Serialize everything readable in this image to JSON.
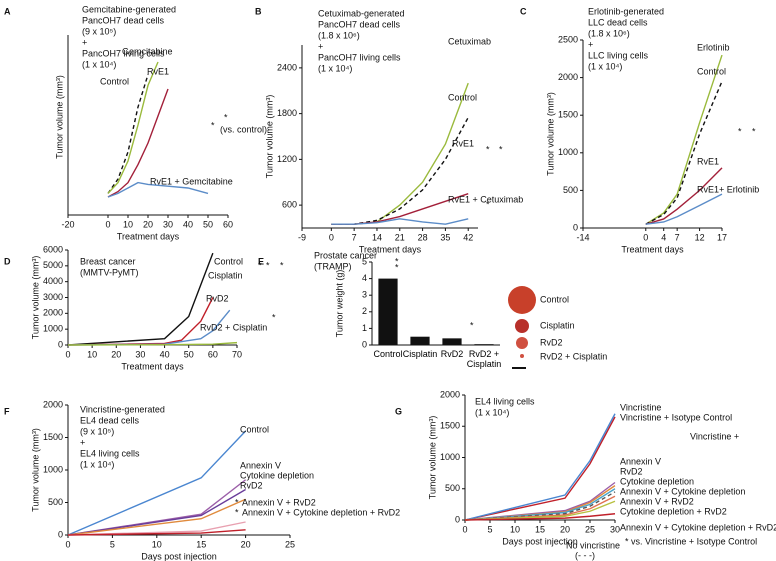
{
  "chart_data": [
    {
      "type": "line",
      "label": "A",
      "title": [
        "Gemcitabine-generated",
        "PancOH7 dead cells",
        "(9 x 10⁵)",
        "+",
        "PancOH7 living cells",
        "(1 x 10⁴)"
      ],
      "xlabel": "Treatment days",
      "ylabel": "Tumor volume (mm³)",
      "xlim": [
        -20,
        60
      ],
      "xticks": [
        -20,
        0,
        10,
        20,
        30,
        40,
        50,
        60
      ],
      "ylim": [
        0,
        100
      ],
      "series": [
        {
          "name": "Control",
          "color": "#111111",
          "dash": true,
          "x": [
            0,
            5,
            10,
            15,
            20
          ],
          "values": [
            12,
            20,
            35,
            60,
            78
          ]
        },
        {
          "name": "Gemcitabine",
          "color": "#9aba3c",
          "x": [
            0,
            5,
            10,
            15,
            20,
            25
          ],
          "values": [
            12,
            18,
            30,
            50,
            72,
            85
          ]
        },
        {
          "name": "RvE1",
          "color": "#a3203a",
          "x": [
            0,
            5,
            10,
            15,
            20,
            25,
            30
          ],
          "values": [
            10,
            13,
            18,
            28,
            40,
            55,
            70
          ]
        },
        {
          "name": "RvE1 + Gemcitabine",
          "color": "#5b8cc8",
          "x": [
            0,
            5,
            10,
            15,
            20,
            30,
            40,
            50
          ],
          "values": [
            10,
            12,
            15,
            18,
            17,
            16,
            15,
            12
          ]
        }
      ],
      "annotations": [
        {
          "text": "*",
          "color": "#c0306a"
        },
        {
          "text": "*",
          "color": "#111111"
        },
        {
          "text": "(vs. control)",
          "color": "#111111"
        }
      ]
    },
    {
      "type": "line",
      "label": "B",
      "title": [
        "Cetuximab-generated",
        "PancOH7 dead cells",
        "(1.8 x 10⁶)",
        "+",
        "PancOH7 living cells",
        "(1 x 10⁴)"
      ],
      "xlabel": "Treatment days",
      "ylabel": "Tumor volume (mm³)",
      "xlim": [
        -9,
        45
      ],
      "xticks": [
        -9,
        0,
        7,
        14,
        21,
        28,
        35,
        42
      ],
      "ylim": [
        300,
        2700
      ],
      "yticks": [
        600,
        1200,
        1800,
        2400
      ],
      "series": [
        {
          "name": "Cetuximab",
          "color": "#9aba3c",
          "x": [
            0,
            7,
            14,
            21,
            28,
            35,
            42
          ],
          "values": [
            350,
            350,
            380,
            600,
            900,
            1400,
            2200
          ]
        },
        {
          "name": "Control",
          "color": "#111111",
          "dash": true,
          "x": [
            0,
            7,
            14,
            21,
            28,
            35,
            42
          ],
          "values": [
            350,
            350,
            400,
            550,
            800,
            1200,
            1750
          ]
        },
        {
          "name": "RvE1",
          "color": "#a3203a",
          "x": [
            0,
            7,
            14,
            21,
            28,
            35,
            42
          ],
          "values": [
            350,
            350,
            380,
            450,
            550,
            650,
            750
          ]
        },
        {
          "name": "RvE1 + Cetuximab",
          "color": "#5b8cc8",
          "x": [
            0,
            7,
            14,
            21,
            28,
            35,
            42
          ],
          "values": [
            350,
            350,
            370,
            420,
            380,
            350,
            420
          ]
        }
      ],
      "annotations": [
        {
          "text": "*",
          "color": "#c0306a"
        },
        {
          "text": "*",
          "color": "#5b8cc8"
        },
        {
          "text": "*",
          "color": "#5b8cc8"
        }
      ]
    },
    {
      "type": "line",
      "label": "C",
      "title": [
        "Erlotinib-generated",
        "LLC dead cells",
        "(1.8 x 10⁶)",
        "+",
        "LLC living cells",
        "(1 x 10⁴)"
      ],
      "xlabel": "Treatment days",
      "ylabel": "Tumor volume (mm³)",
      "xlim": [
        -14,
        17
      ],
      "xticks": [
        -14,
        0,
        4,
        7,
        12,
        17
      ],
      "ylim": [
        0,
        2500
      ],
      "yticks": [
        0,
        500,
        1000,
        1500,
        2000,
        2500
      ],
      "series": [
        {
          "name": "Erlotinib",
          "color": "#9aba3c",
          "x": [
            0,
            4,
            7,
            12,
            17
          ],
          "values": [
            50,
            200,
            450,
            1400,
            2300
          ]
        },
        {
          "name": "Control",
          "color": "#111111",
          "dash": true,
          "x": [
            0,
            4,
            7,
            12,
            17
          ],
          "values": [
            50,
            180,
            400,
            1250,
            1950
          ]
        },
        {
          "name": "RvE1",
          "color": "#a3203a",
          "x": [
            0,
            4,
            7,
            12,
            17
          ],
          "values": [
            50,
            120,
            250,
            500,
            800
          ]
        },
        {
          "name": "RvE1+ Erlotinib",
          "color": "#5b8cc8",
          "x": [
            0,
            4,
            7,
            12,
            17
          ],
          "values": [
            50,
            80,
            150,
            300,
            450
          ]
        }
      ],
      "annotations": [
        {
          "text": "*",
          "color": "#c0306a"
        },
        {
          "text": "*",
          "color": "#9aba3c"
        }
      ]
    },
    {
      "type": "line",
      "label": "D",
      "title": [
        "Breast cancer",
        "(MMTV-PyMT)"
      ],
      "xlabel": "Treatment days",
      "ylabel": "Tumor volume (mm³)",
      "xlim": [
        0,
        70
      ],
      "xticks": [
        0,
        10,
        20,
        30,
        40,
        50,
        60,
        70
      ],
      "ylim": [
        0,
        6000
      ],
      "yticks": [
        0,
        1000,
        2000,
        3000,
        4000,
        5000,
        6000
      ],
      "series": [
        {
          "name": "Control",
          "color": "#111111",
          "x": [
            0,
            40,
            50,
            60
          ],
          "values": [
            0,
            400,
            1800,
            5800
          ]
        },
        {
          "name": "Cisplatin",
          "color": "#c0202a",
          "x": [
            0,
            40,
            47,
            55,
            60
          ],
          "values": [
            0,
            100,
            300,
            1500,
            3000
          ]
        },
        {
          "name": "RvD2",
          "color": "#5b8cc8",
          "x": [
            0,
            40,
            55,
            60,
            67
          ],
          "values": [
            0,
            50,
            400,
            900,
            2200
          ]
        },
        {
          "name": "RvD2 + Cisplatin",
          "color": "#9aba3c",
          "x": [
            0,
            40,
            60,
            70
          ],
          "values": [
            0,
            20,
            50,
            150
          ]
        }
      ],
      "annotations": [
        {
          "text": "*",
          "color": "#c0306a"
        },
        {
          "text": "*",
          "color": "#5b8cc8"
        },
        {
          "text": "*",
          "color": "#9aba3c"
        },
        {
          "text": "*",
          "color": "#9aba3c"
        }
      ]
    },
    {
      "type": "bar",
      "label": "E",
      "title": [
        "Prostate cancer",
        "(TRAMP)"
      ],
      "ylabel": "Tumor weight (g)",
      "categories": [
        "Control",
        "Cisplatin",
        "RvD2",
        "RvD2 + Cisplatin"
      ],
      "values": [
        4.0,
        0.5,
        0.4,
        0.05
      ],
      "color": "#111111",
      "ylim": [
        0,
        5
      ],
      "yticks": [
        0,
        1,
        2,
        3,
        4,
        5
      ],
      "annotations": [
        {
          "text": "*",
          "color": "#111111"
        },
        {
          "text": "*",
          "color": "#111111"
        },
        {
          "text": "*",
          "color": "#111111"
        }
      ]
    },
    {
      "type": "line",
      "label": "F",
      "title": [
        "Vincristine-generated",
        "EL4 dead cells",
        "(9 x 10⁵)",
        "+",
        "EL4 living cells",
        "(1 x 10⁴)"
      ],
      "xlabel": "Days post injection",
      "ylabel": "Tumor volume (mm³)",
      "xlim": [
        0,
        25
      ],
      "xticks": [
        0,
        5,
        10,
        15,
        20,
        25
      ],
      "ylim": [
        0,
        2000
      ],
      "yticks": [
        0,
        500,
        1000,
        1500,
        2000
      ],
      "series": [
        {
          "name": "Control",
          "color": "#4a86d0",
          "x": [
            0,
            15,
            20
          ],
          "values": [
            0,
            880,
            1600
          ]
        },
        {
          "name": "Annexin V",
          "color": "#9b5ea8",
          "x": [
            0,
            15,
            20
          ],
          "values": [
            0,
            320,
            850
          ]
        },
        {
          "name": "Cytokine depletion",
          "color": "#6a3d9a",
          "x": [
            0,
            15,
            20
          ],
          "values": [
            0,
            300,
            700
          ]
        },
        {
          "name": "RvD2",
          "color": "#e08a3c",
          "x": [
            0,
            15,
            20
          ],
          "values": [
            0,
            250,
            550
          ]
        },
        {
          "name": "Annexin V + RvD2",
          "color": "#e8a0b0",
          "x": [
            0,
            15,
            20
          ],
          "values": [
            0,
            60,
            200
          ]
        },
        {
          "name": "Annexin V + Cytokine depletion + RvD2",
          "color": "#c0202a",
          "x": [
            0,
            15,
            20
          ],
          "values": [
            0,
            30,
            80
          ]
        }
      ],
      "annotations": [
        {
          "text": "*",
          "color": "#e8a0b0"
        },
        {
          "text": "*",
          "color": "#c0202a"
        }
      ]
    },
    {
      "type": "line",
      "label": "G",
      "title": [
        "EL4 living cells",
        "(1 x 10⁴)"
      ],
      "xlabel": "Days post injection",
      "ylabel": "Tumor volume (mm³)",
      "xlim": [
        0,
        30
      ],
      "xticks": [
        0,
        5,
        10,
        15,
        20,
        25,
        30
      ],
      "ylim": [
        0,
        2000
      ],
      "yticks": [
        0,
        500,
        1000,
        1500,
        2000
      ],
      "series": [
        {
          "name": "Vincristine",
          "color": "#c0202a",
          "x": [
            0,
            20,
            25,
            30
          ],
          "values": [
            0,
            350,
            900,
            1650
          ]
        },
        {
          "name": "Vincristine + Isotype Control",
          "color": "#4a86d0",
          "x": [
            0,
            20,
            25,
            30
          ],
          "values": [
            0,
            400,
            950,
            1700
          ]
        },
        {
          "name": "Annexin V",
          "color": "#9b5ea8",
          "x": [
            0,
            20,
            25,
            30
          ],
          "values": [
            0,
            150,
            300,
            600
          ]
        },
        {
          "name": "RvD2",
          "color": "#e08a3c",
          "x": [
            0,
            20,
            25,
            30
          ],
          "values": [
            0,
            130,
            280,
            550
          ]
        },
        {
          "name": "Cytokine depletion",
          "color": "#4aa3c8",
          "x": [
            0,
            20,
            25,
            30
          ],
          "values": [
            0,
            120,
            250,
            500
          ]
        },
        {
          "name": "Annexin V + Cytokine depletion",
          "color": "#555555",
          "dash": true,
          "x": [
            0,
            20,
            25,
            30
          ],
          "values": [
            0,
            100,
            220,
            450
          ]
        },
        {
          "name": "Annexin V + RvD2",
          "color": "#e07050",
          "x": [
            0,
            20,
            25,
            30
          ],
          "values": [
            0,
            80,
            180,
            380
          ]
        },
        {
          "name": "Cytokine depletion + RvD2",
          "color": "#b8c040",
          "x": [
            0,
            20,
            25,
            30
          ],
          "values": [
            0,
            60,
            140,
            300
          ]
        },
        {
          "name": "Annexin V + Cytokine depletion + RvD2",
          "color": "#c0202a",
          "x": [
            0,
            20,
            25,
            30
          ],
          "values": [
            0,
            30,
            60,
            100
          ]
        }
      ],
      "annotations": [
        {
          "text": "Vincristine +",
          "color": "#111111"
        },
        {
          "text": "* vs. Vincristine + Isotype Control",
          "color": "#c0202a"
        },
        {
          "text": "No vincristine",
          "color": "#111111"
        },
        {
          "text": "(- - -)",
          "color": "#111111"
        }
      ]
    }
  ]
}
